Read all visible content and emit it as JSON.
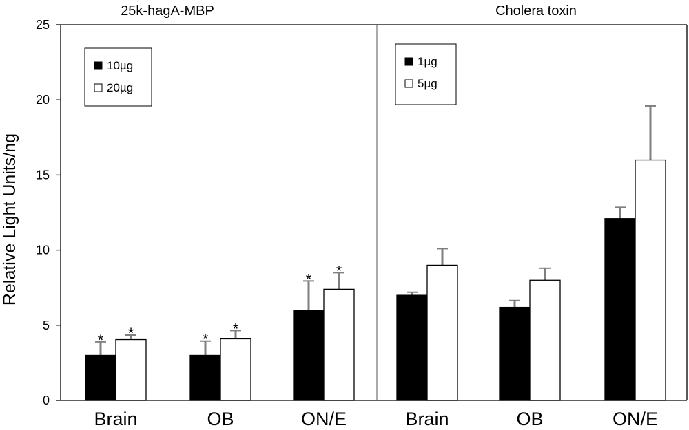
{
  "chart_data": {
    "type": "bar",
    "ylabel": "Relative Light Units/ng",
    "ylim": [
      0,
      25
    ],
    "yticks": [
      0,
      5,
      10,
      15,
      20,
      25
    ],
    "grid": false,
    "error_bar_color": "#7f7f7f",
    "panels": [
      {
        "title": "25k-hagA-MBP",
        "categories": [
          "Brain",
          "OB",
          "ON/E"
        ],
        "legend_position": "top-left",
        "series": [
          {
            "name": "10µg",
            "fill": "#000000",
            "values": [
              3.0,
              3.0,
              6.0
            ],
            "errors": [
              0.9,
              0.95,
              1.95
            ],
            "significance": [
              "*",
              "*",
              "*"
            ]
          },
          {
            "name": "20µg",
            "fill": "#ffffff",
            "values": [
              4.05,
              4.1,
              7.4
            ],
            "errors": [
              0.3,
              0.55,
              1.1
            ],
            "significance": [
              "*",
              "*",
              "*"
            ]
          }
        ]
      },
      {
        "title": "Cholera toxin",
        "categories": [
          "Brain",
          "OB",
          "ON/E"
        ],
        "legend_position": "top-left",
        "series": [
          {
            "name": "1µg",
            "fill": "#000000",
            "values": [
              7.0,
              6.2,
              12.1
            ],
            "errors": [
              0.2,
              0.45,
              0.75
            ],
            "significance": [
              "",
              "",
              ""
            ]
          },
          {
            "name": "5µg",
            "fill": "#ffffff",
            "values": [
              9.0,
              8.0,
              16.0
            ],
            "errors": [
              1.1,
              0.8,
              3.6
            ],
            "significance": [
              "",
              "",
              ""
            ]
          }
        ]
      }
    ]
  }
}
